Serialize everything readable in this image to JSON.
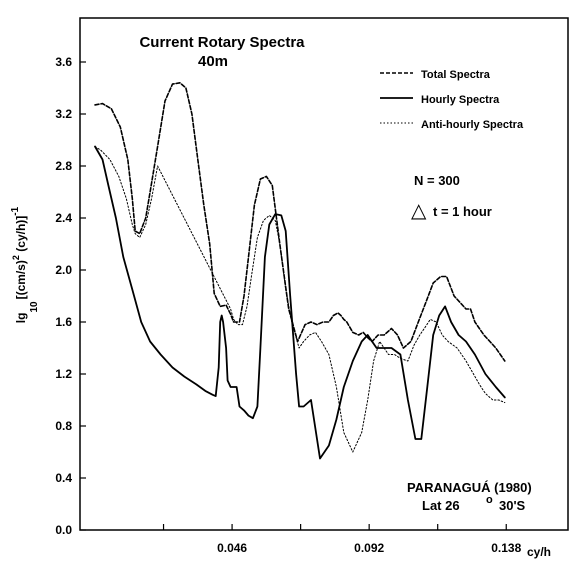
{
  "chart_data": {
    "type": "line",
    "title": "Current Rotary Spectra",
    "subtitle": "40m",
    "xlabel": "cy/h",
    "ylabel": "lg10 [(cm/s)2 (cy/h)-1]",
    "ylabel_parts": {
      "base": "lg",
      "sub": "10",
      "bracket": "[(cm/s)",
      "sup2": "2",
      "tail": " (cy/h)]",
      "sup": "-1"
    },
    "xlim": [
      0.0,
      0.138
    ],
    "ylim": [
      0.0,
      4.0
    ],
    "x_ticks": [
      0.046,
      0.092,
      0.138
    ],
    "x_tick_labels": [
      "0.046",
      "0.092",
      "0.138"
    ],
    "y_ticks": [
      0.0,
      0.4,
      0.8,
      1.2,
      1.6,
      2.0,
      2.4,
      2.8,
      3.2,
      3.6
    ],
    "y_tick_labels": [
      "0.0",
      "0.4",
      "0.8",
      "1.2",
      "1.6",
      "2.0",
      "2.4",
      "2.8",
      "3.2",
      "3.6"
    ],
    "grid": false,
    "legend_position": "top-right",
    "annotations": {
      "n": "N = 300",
      "delta_symbol": "△",
      "dt": "t = 1 hour",
      "location": "PARANAGUÁ  (1980)",
      "lat_prefix": "Lat  26",
      "lat_degree": "o",
      "lat_suffix": "30'S"
    },
    "series": [
      {
        "name": "Total Spectra",
        "style": "dashed",
        "x": [
          0.0,
          0.0025,
          0.0055,
          0.0085,
          0.011,
          0.0125,
          0.0135,
          0.015,
          0.017,
          0.0185,
          0.021,
          0.0235,
          0.026,
          0.0285,
          0.0305,
          0.0325,
          0.0345,
          0.0365,
          0.0385,
          0.04,
          0.042,
          0.044,
          0.0455,
          0.0465,
          0.0485,
          0.05,
          0.0515,
          0.0535,
          0.0555,
          0.0575,
          0.0595,
          0.062,
          0.065,
          0.068,
          0.0705,
          0.0725,
          0.0745,
          0.0765,
          0.0785,
          0.08,
          0.0815,
          0.0825,
          0.0835,
          0.0845,
          0.0865,
          0.0885,
          0.09,
          0.0915,
          0.093,
          0.095,
          0.097,
          0.0995,
          0.1015,
          0.1035,
          0.106,
          0.1085,
          0.111,
          0.1135,
          0.116,
          0.118,
          0.1205,
          0.1225,
          0.1245,
          0.126,
          0.1275,
          0.129,
          0.1305,
          0.1325,
          0.1345,
          0.136,
          0.1375
        ],
        "values": [
          3.27,
          3.28,
          3.24,
          3.1,
          2.85,
          2.55,
          2.3,
          2.28,
          2.4,
          2.6,
          2.95,
          3.3,
          3.43,
          3.44,
          3.4,
          3.2,
          2.85,
          2.5,
          2.2,
          1.82,
          1.72,
          1.73,
          1.66,
          1.6,
          1.6,
          1.8,
          2.1,
          2.5,
          2.7,
          2.72,
          2.65,
          2.2,
          1.7,
          1.45,
          1.58,
          1.6,
          1.58,
          1.6,
          1.6,
          1.65,
          1.67,
          1.65,
          1.62,
          1.6,
          1.52,
          1.5,
          1.52,
          1.48,
          1.45,
          1.5,
          1.5,
          1.55,
          1.5,
          1.4,
          1.45,
          1.6,
          1.75,
          1.9,
          1.95,
          1.95,
          1.8,
          1.75,
          1.7,
          1.7,
          1.6,
          1.55,
          1.5,
          1.45,
          1.4,
          1.35,
          1.3
        ]
      },
      {
        "name": "Hourly Spectra",
        "style": "solid",
        "x": [
          0.0,
          0.0025,
          0.0045,
          0.007,
          0.0095,
          0.0125,
          0.0155,
          0.0185,
          0.022,
          0.026,
          0.03,
          0.034,
          0.037,
          0.0395,
          0.0405,
          0.0415,
          0.042,
          0.0425,
          0.043,
          0.044,
          0.0445,
          0.0455,
          0.0475,
          0.0485,
          0.05,
          0.0515,
          0.053,
          0.0545,
          0.0555,
          0.057,
          0.0585,
          0.0605,
          0.0625,
          0.064,
          0.0655,
          0.0675,
          0.0685,
          0.07,
          0.0725,
          0.0755,
          0.0785,
          0.081,
          0.0835,
          0.0865,
          0.0895,
          0.0915,
          0.093,
          0.0945,
          0.0965,
          0.0995,
          0.1025,
          0.105,
          0.1075,
          0.1095,
          0.1115,
          0.1135,
          0.1155,
          0.1175,
          0.1195,
          0.122,
          0.1245,
          0.1275,
          0.131,
          0.1345,
          0.1375
        ],
        "values": [
          2.95,
          2.85,
          2.65,
          2.4,
          2.1,
          1.85,
          1.6,
          1.45,
          1.35,
          1.25,
          1.18,
          1.12,
          1.07,
          1.04,
          1.03,
          1.25,
          1.6,
          1.65,
          1.6,
          1.4,
          1.15,
          1.1,
          1.1,
          0.95,
          0.92,
          0.88,
          0.86,
          0.95,
          1.4,
          2.1,
          2.35,
          2.43,
          2.42,
          2.3,
          1.8,
          1.2,
          0.95,
          0.95,
          1.0,
          0.55,
          0.65,
          0.85,
          1.1,
          1.3,
          1.45,
          1.5,
          1.45,
          1.4,
          1.4,
          1.4,
          1.35,
          1.0,
          0.7,
          0.7,
          1.1,
          1.5,
          1.65,
          1.72,
          1.6,
          1.5,
          1.45,
          1.35,
          1.2,
          1.1,
          1.02
        ]
      },
      {
        "name": "Anti-hourly Spectra",
        "style": "dotted",
        "x": [
          0.0,
          0.002,
          0.005,
          0.008,
          0.0105,
          0.0125,
          0.0135,
          0.015,
          0.017,
          0.019,
          0.021,
          0.0455,
          0.0465,
          0.048,
          0.0495,
          0.051,
          0.0525,
          0.0545,
          0.0565,
          0.0585,
          0.0605,
          0.062,
          0.064,
          0.066,
          0.0685,
          0.07,
          0.072,
          0.074,
          0.076,
          0.0785,
          0.081,
          0.0835,
          0.0865,
          0.0895,
          0.0915,
          0.0935,
          0.0955,
          0.097,
          0.0985,
          0.1005,
          0.1025,
          0.105,
          0.107,
          0.109,
          0.1105,
          0.1125,
          0.1145,
          0.1165,
          0.1185,
          0.1215,
          0.1245,
          0.127,
          0.129,
          0.131,
          0.1335,
          0.1355,
          0.1375
        ],
        "values": [
          2.95,
          2.92,
          2.85,
          2.72,
          2.55,
          2.35,
          2.28,
          2.25,
          2.35,
          2.55,
          2.8,
          1.7,
          1.62,
          1.58,
          1.58,
          1.72,
          1.95,
          2.25,
          2.38,
          2.42,
          2.38,
          2.2,
          1.85,
          1.6,
          1.4,
          1.45,
          1.5,
          1.52,
          1.45,
          1.35,
          1.1,
          0.75,
          0.6,
          0.75,
          1.0,
          1.3,
          1.45,
          1.4,
          1.35,
          1.35,
          1.32,
          1.3,
          1.42,
          1.5,
          1.55,
          1.62,
          1.6,
          1.5,
          1.45,
          1.4,
          1.3,
          1.2,
          1.12,
          1.05,
          1.0,
          1.0,
          0.98
        ]
      }
    ]
  }
}
